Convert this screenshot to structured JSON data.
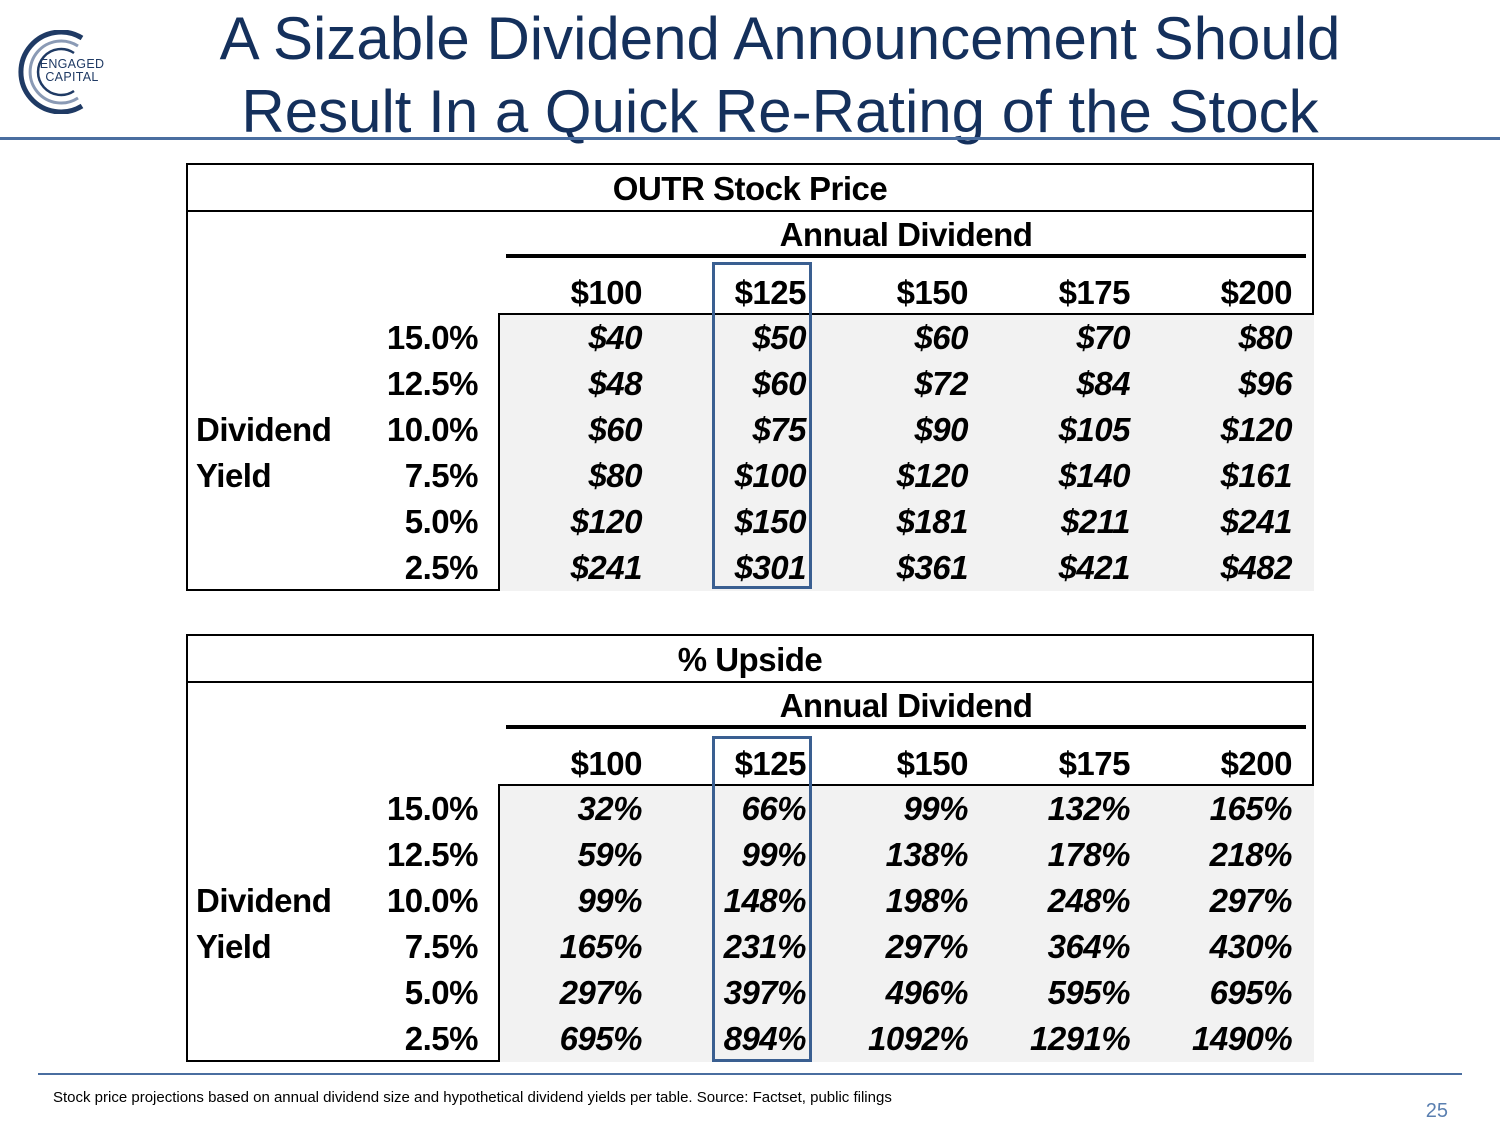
{
  "logo": {
    "line1": "ENGAGED",
    "line2": "CAPITAL"
  },
  "title": {
    "line1": "A Sizable Dividend Announcement Should",
    "line2": "Result In a Quick Re-Rating of the Stock"
  },
  "colors": {
    "title": "#14305c",
    "accent": "#4a6ea0",
    "highlight": "#3a5f91",
    "cell_bg": "#f2f2f2"
  },
  "tables": [
    {
      "title": "OUTR Stock Price",
      "subtitle": "Annual Dividend",
      "side_label_1": "Dividend",
      "side_label_2": "Yield",
      "columns": [
        "$100",
        "$125",
        "$150",
        "$175",
        "$200"
      ],
      "highlighted_column": "$125",
      "rows": [
        {
          "yield": "15.0%",
          "cells": [
            "$40",
            "$50",
            "$60",
            "$70",
            "$80"
          ]
        },
        {
          "yield": "12.5%",
          "cells": [
            "$48",
            "$60",
            "$72",
            "$84",
            "$96"
          ]
        },
        {
          "yield": "10.0%",
          "cells": [
            "$60",
            "$75",
            "$90",
            "$105",
            "$120"
          ]
        },
        {
          "yield": "7.5%",
          "cells": [
            "$80",
            "$100",
            "$120",
            "$140",
            "$161"
          ]
        },
        {
          "yield": "5.0%",
          "cells": [
            "$120",
            "$150",
            "$181",
            "$211",
            "$241"
          ]
        },
        {
          "yield": "2.5%",
          "cells": [
            "$241",
            "$301",
            "$361",
            "$421",
            "$482"
          ]
        }
      ]
    },
    {
      "title": "% Upside",
      "subtitle": "Annual Dividend",
      "side_label_1": "Dividend",
      "side_label_2": "Yield",
      "columns": [
        "$100",
        "$125",
        "$150",
        "$175",
        "$200"
      ],
      "highlighted_column": "$125",
      "rows": [
        {
          "yield": "15.0%",
          "cells": [
            "32%",
            "66%",
            "99%",
            "132%",
            "165%"
          ]
        },
        {
          "yield": "12.5%",
          "cells": [
            "59%",
            "99%",
            "138%",
            "178%",
            "218%"
          ]
        },
        {
          "yield": "10.0%",
          "cells": [
            "99%",
            "148%",
            "198%",
            "248%",
            "297%"
          ]
        },
        {
          "yield": "7.5%",
          "cells": [
            "165%",
            "231%",
            "297%",
            "364%",
            "430%"
          ]
        },
        {
          "yield": "5.0%",
          "cells": [
            "297%",
            "397%",
            "496%",
            "595%",
            "695%"
          ]
        },
        {
          "yield": "2.5%",
          "cells": [
            "695%",
            "894%",
            "1092%",
            "1291%",
            "1490%"
          ]
        }
      ]
    }
  ],
  "footnote": "Stock price projections based on annual dividend size and hypothetical dividend yields per table. Source: Factset, public filings",
  "page_number": "25"
}
